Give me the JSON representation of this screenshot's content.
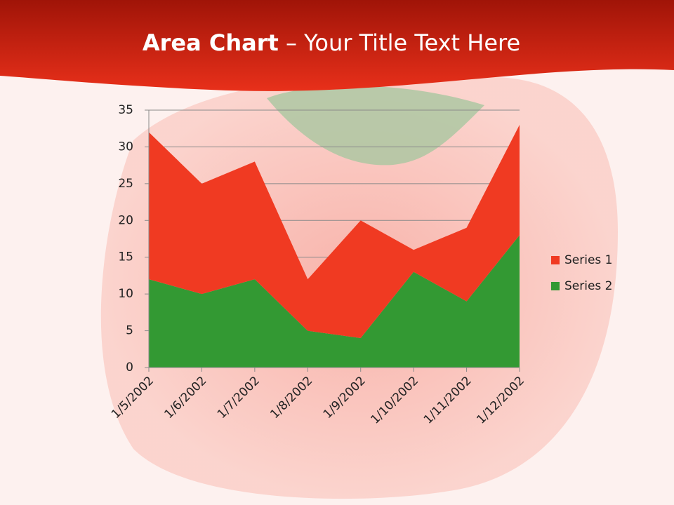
{
  "chart_data": {
    "type": "stacked_area",
    "title": [
      "Area Chart",
      "– Your Title Text Here"
    ],
    "categories": [
      "1/5/2002",
      "1/6/2002",
      "1/7/2002",
      "1/8/2002",
      "1/9/2002",
      "1/10/2002",
      "1/11/2002",
      "1/12/2002"
    ],
    "series": [
      {
        "name": "Series 1",
        "color": "#f03a22",
        "values": [
          20,
          15,
          16,
          7,
          16,
          3,
          10,
          15
        ]
      },
      {
        "name": "Series 2",
        "color": "#339933",
        "values": [
          12,
          10,
          12,
          5,
          4,
          13,
          9,
          18
        ]
      }
    ],
    "ylim": [
      0,
      35
    ],
    "yticks": [
      0,
      5,
      10,
      15,
      20,
      25,
      30,
      35
    ],
    "grid": true,
    "legend": "right"
  }
}
